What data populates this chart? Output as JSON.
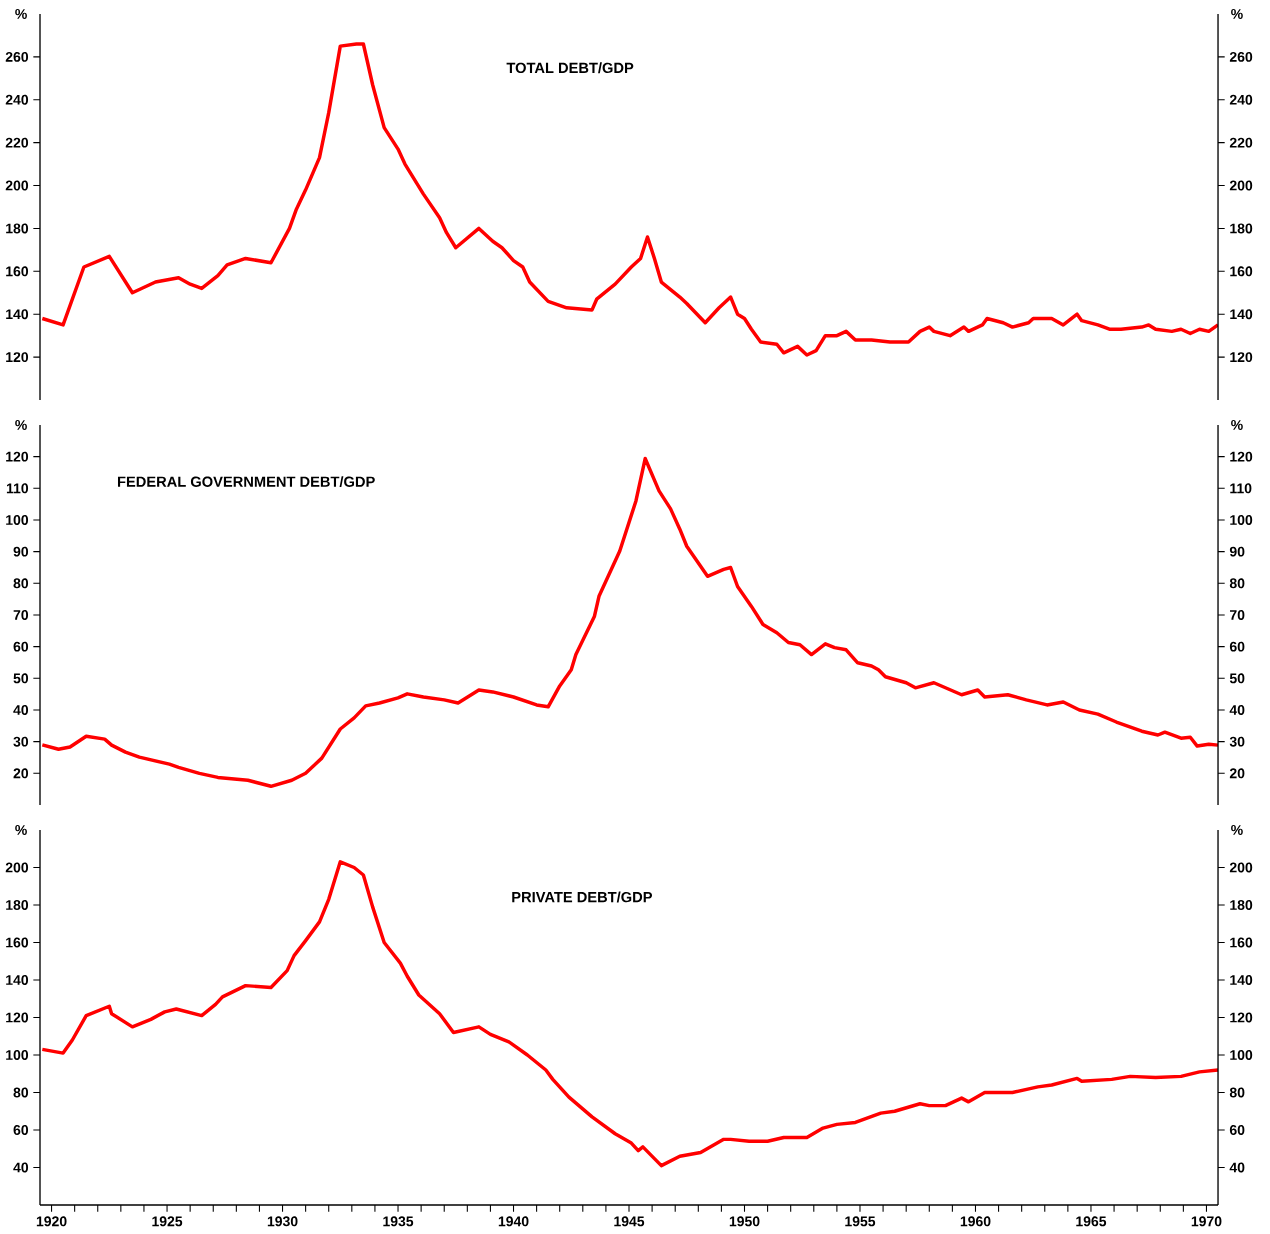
{
  "chart_data": [
    {
      "type": "line",
      "title": "TOTAL DEBT/GDP",
      "ylabel": "%",
      "y2label": "%",
      "tick_labels": "y",
      "xlim": [
        1919.5,
        1970.5
      ],
      "ylim": [
        100,
        280
      ],
      "yticks": [
        120,
        140,
        160,
        180,
        200,
        220,
        240,
        260
      ],
      "y2lim": [
        100,
        280
      ],
      "y2ticks": [
        120,
        140,
        160,
        180,
        200,
        220,
        240,
        260
      ],
      "x": [
        1919.6,
        1920.5,
        1921.4,
        1922.5,
        1923.5,
        1924.5,
        1925.5,
        1926.0,
        1926.5,
        1927.2,
        1927.6,
        1928.4,
        1929.5,
        1930.3,
        1930.6,
        1931.0,
        1931.6,
        1932.0,
        1932.5,
        1933.2,
        1933.5,
        1933.9,
        1934.4,
        1935.0,
        1935.3,
        1936.1,
        1936.8,
        1937.1,
        1937.5,
        1938.5,
        1939.1,
        1939.5,
        1940.0,
        1940.4,
        1940.7,
        1941.5,
        1942.3,
        1943.4,
        1943.6,
        1944.4,
        1945.1,
        1945.5,
        1945.8,
        1946.1,
        1946.4,
        1947.2,
        1947.5,
        1948.3,
        1948.9,
        1949.4,
        1949.7,
        1950.0,
        1950.3,
        1950.7,
        1951.4,
        1951.7,
        1952.3,
        1952.7,
        1953.1,
        1953.5,
        1954.0,
        1954.4,
        1954.8,
        1955.5,
        1956.3,
        1957.1,
        1957.6,
        1958.0,
        1958.2,
        1958.9,
        1959.5,
        1959.7,
        1960.3,
        1960.5,
        1961.2,
        1961.6,
        1962.3,
        1962.5,
        1963.3,
        1963.8,
        1964.4,
        1964.6,
        1965.3,
        1965.8,
        1966.3,
        1967.2,
        1967.5,
        1967.8,
        1968.5,
        1968.9,
        1969.3,
        1969.7,
        1970.1,
        1970.5
      ],
      "series": [
        {
          "color": "#ff0000",
          "values": [
            138,
            135,
            162,
            167,
            150,
            155,
            157,
            154,
            152,
            158,
            163,
            166,
            164,
            180,
            189,
            198,
            213,
            234,
            265,
            266,
            266,
            247,
            227,
            217,
            210,
            196,
            185,
            178,
            171,
            180,
            174,
            171,
            165,
            162,
            155,
            146,
            143,
            142,
            147,
            154,
            162,
            166,
            176,
            166,
            155,
            148,
            145,
            136,
            143,
            148,
            140,
            138,
            133,
            127,
            126,
            122,
            125,
            121,
            123,
            130,
            130,
            132,
            128,
            128,
            127,
            127,
            132,
            134,
            132,
            130,
            134,
            132,
            135,
            138,
            136,
            134,
            136,
            138,
            138,
            135,
            140,
            137,
            135,
            133,
            133,
            134,
            135,
            133,
            132,
            133,
            131,
            133,
            132,
            135
          ]
        }
      ]
    },
    {
      "type": "line",
      "title": "FEDERAL GOVERNMENT DEBT/GDP",
      "ylabel": "%",
      "y2label": "%",
      "tick_labels": "y",
      "xlim": [
        1919.5,
        1970.5
      ],
      "ylim": [
        10,
        130
      ],
      "yticks": [
        20,
        30,
        40,
        50,
        60,
        70,
        80,
        90,
        100,
        110,
        120
      ],
      "y2lim": [
        10,
        130
      ],
      "y2ticks": [
        20,
        30,
        40,
        50,
        60,
        70,
        80,
        90,
        100,
        110,
        120
      ],
      "x": [
        1919.6,
        1920.3,
        1920.8,
        1921.5,
        1922.3,
        1922.6,
        1923.2,
        1923.8,
        1925.1,
        1925.5,
        1926.4,
        1927.2,
        1928.5,
        1929.5,
        1930.4,
        1931.0,
        1931.7,
        1932.5,
        1933.1,
        1933.6,
        1934.2,
        1935.0,
        1935.4,
        1936.1,
        1937.0,
        1937.6,
        1938.5,
        1939.1,
        1940.0,
        1941.0,
        1941.5,
        1942.0,
        1942.5,
        1942.7,
        1943.5,
        1943.7,
        1944.6,
        1945.3,
        1945.7,
        1946.3,
        1946.8,
        1947.2,
        1947.5,
        1948.4,
        1949.1,
        1949.4,
        1949.7,
        1950.3,
        1950.8,
        1951.4,
        1951.9,
        1952.4,
        1952.9,
        1953.5,
        1953.9,
        1954.4,
        1954.9,
        1955.5,
        1955.8,
        1956.1,
        1957.0,
        1957.4,
        1958.2,
        1958.8,
        1959.4,
        1960.1,
        1960.4,
        1961.4,
        1962.2,
        1963.1,
        1963.8,
        1964.5,
        1965.3,
        1966.1,
        1967.2,
        1967.9,
        1968.2,
        1968.9,
        1969.3,
        1969.6,
        1970.1,
        1970.5
      ],
      "series": [
        {
          "color": "#ff0000",
          "values": [
            29,
            27.6,
            28.3,
            31.7,
            30.8,
            28.9,
            26.7,
            25.1,
            22.9,
            21.9,
            20,
            18.7,
            17.8,
            15.9,
            17.8,
            20,
            24.8,
            34,
            37.5,
            41.3,
            42.2,
            43.8,
            45.1,
            44.1,
            43.2,
            42.2,
            46.3,
            45.7,
            44.1,
            41.6,
            41,
            47.6,
            52.7,
            57.5,
            69.5,
            75.9,
            90.2,
            106,
            119.4,
            109.2,
            103.5,
            97.1,
            91.7,
            82.2,
            84.4,
            85,
            79,
            72.7,
            67,
            64.4,
            61.3,
            60.6,
            57.5,
            60.9,
            59.7,
            59,
            54.9,
            53.9,
            52.7,
            50.5,
            48.6,
            47,
            48.6,
            46.7,
            44.8,
            46.3,
            44.1,
            44.8,
            43.2,
            41.6,
            42.5,
            40,
            38.7,
            36.2,
            33.3,
            32.1,
            33,
            31.1,
            31.4,
            28.6,
            29.2,
            28.9
          ]
        }
      ]
    },
    {
      "type": "line",
      "title": "PRIVATE DEBT/GDP",
      "ylabel": "%",
      "y2label": "%",
      "xlim": [
        1919.5,
        1970.5
      ],
      "ylim": [
        20,
        220
      ],
      "yticks": [
        40,
        60,
        80,
        100,
        120,
        140,
        160,
        180,
        200
      ],
      "y2lim": [
        20,
        220
      ],
      "y2ticks": [
        40,
        60,
        80,
        100,
        120,
        140,
        160,
        180,
        200
      ],
      "xticks": [
        1920,
        {
          "value": 1921,
          "label": null
        },
        {
          "value": 1922,
          "label": null
        },
        {
          "value": 1923,
          "label": null
        },
        {
          "value": 1924,
          "label": null
        },
        1925,
        {
          "value": 1926,
          "label": null
        },
        {
          "value": 1927,
          "label": null
        },
        {
          "value": 1928,
          "label": null
        },
        {
          "value": 1929,
          "label": null
        },
        1930,
        {
          "value": 1931,
          "label": null
        },
        {
          "value": 1932,
          "label": null
        },
        {
          "value": 1933,
          "label": null
        },
        {
          "value": 1934,
          "label": null
        },
        1935,
        {
          "value": 1936,
          "label": null
        },
        {
          "value": 1937,
          "label": null
        },
        {
          "value": 1938,
          "label": null
        },
        {
          "value": 1939,
          "label": null
        },
        1940,
        {
          "value": 1941,
          "label": null
        },
        {
          "value": 1942,
          "label": null
        },
        {
          "value": 1943,
          "label": null
        },
        {
          "value": 1944,
          "label": null
        },
        1945,
        {
          "value": 1946,
          "label": null
        },
        {
          "value": 1947,
          "label": null
        },
        {
          "value": 1948,
          "label": null
        },
        {
          "value": 1949,
          "label": null
        },
        1950,
        {
          "value": 1951,
          "label": null
        },
        {
          "value": 1952,
          "label": null
        },
        {
          "value": 1953,
          "label": null
        },
        {
          "value": 1954,
          "label": null
        },
        1955,
        {
          "value": 1956,
          "label": null
        },
        {
          "value": 1957,
          "label": null
        },
        {
          "value": 1958,
          "label": null
        },
        {
          "value": 1959,
          "label": null
        },
        1960,
        {
          "value": 1961,
          "label": null
        },
        {
          "value": 1962,
          "label": null
        },
        {
          "value": 1963,
          "label": null
        },
        {
          "value": 1964,
          "label": null
        },
        1965,
        {
          "value": 1966,
          "label": null
        },
        {
          "value": 1967,
          "label": null
        },
        {
          "value": 1968,
          "label": null
        },
        {
          "value": 1969,
          "label": null
        },
        1970
      ],
      "x": [
        1919.6,
        1920.5,
        1920.9,
        1921.5,
        1922.5,
        1922.6,
        1923.5,
        1924.3,
        1924.9,
        1925.4,
        1926.5,
        1927.1,
        1927.4,
        1928.4,
        1929.5,
        1930.2,
        1930.5,
        1931.0,
        1931.6,
        1932.0,
        1932.5,
        1933.1,
        1933.5,
        1933.9,
        1934.4,
        1935.1,
        1935.4,
        1935.9,
        1936.8,
        1937.4,
        1938.5,
        1939.0,
        1939.8,
        1940.6,
        1941.4,
        1941.7,
        1942.4,
        1943.4,
        1944.4,
        1945.1,
        1945.4,
        1945.6,
        1946.4,
        1947.2,
        1948.1,
        1949.1,
        1949.4,
        1950.2,
        1951.0,
        1951.7,
        1952.7,
        1953.4,
        1954.0,
        1954.8,
        1955.9,
        1956.5,
        1957.6,
        1958.0,
        1958.7,
        1959.4,
        1959.7,
        1960.4,
        1961.6,
        1962.7,
        1963.3,
        1964.4,
        1964.6,
        1965.9,
        1966.7,
        1967.8,
        1968.9,
        1969.7,
        1970.5
      ],
      "series": [
        {
          "color": "#ff0000",
          "values": [
            103,
            101,
            108,
            121,
            126,
            122,
            115,
            119,
            123,
            124.5,
            121,
            127,
            131,
            137,
            136,
            145,
            153,
            161,
            171,
            183,
            203,
            200,
            196,
            179,
            160,
            149,
            142,
            132,
            122,
            112,
            115,
            111,
            107,
            100,
            92,
            87,
            77.5,
            67,
            58,
            53,
            49,
            51,
            41,
            46,
            48,
            55,
            55,
            54,
            54,
            56,
            56,
            61,
            63,
            64,
            69,
            70,
            74,
            73,
            73,
            77,
            75,
            80,
            80,
            83,
            84,
            87.5,
            86,
            87,
            88.6,
            88,
            88.6,
            91,
            92
          ]
        }
      ]
    }
  ]
}
